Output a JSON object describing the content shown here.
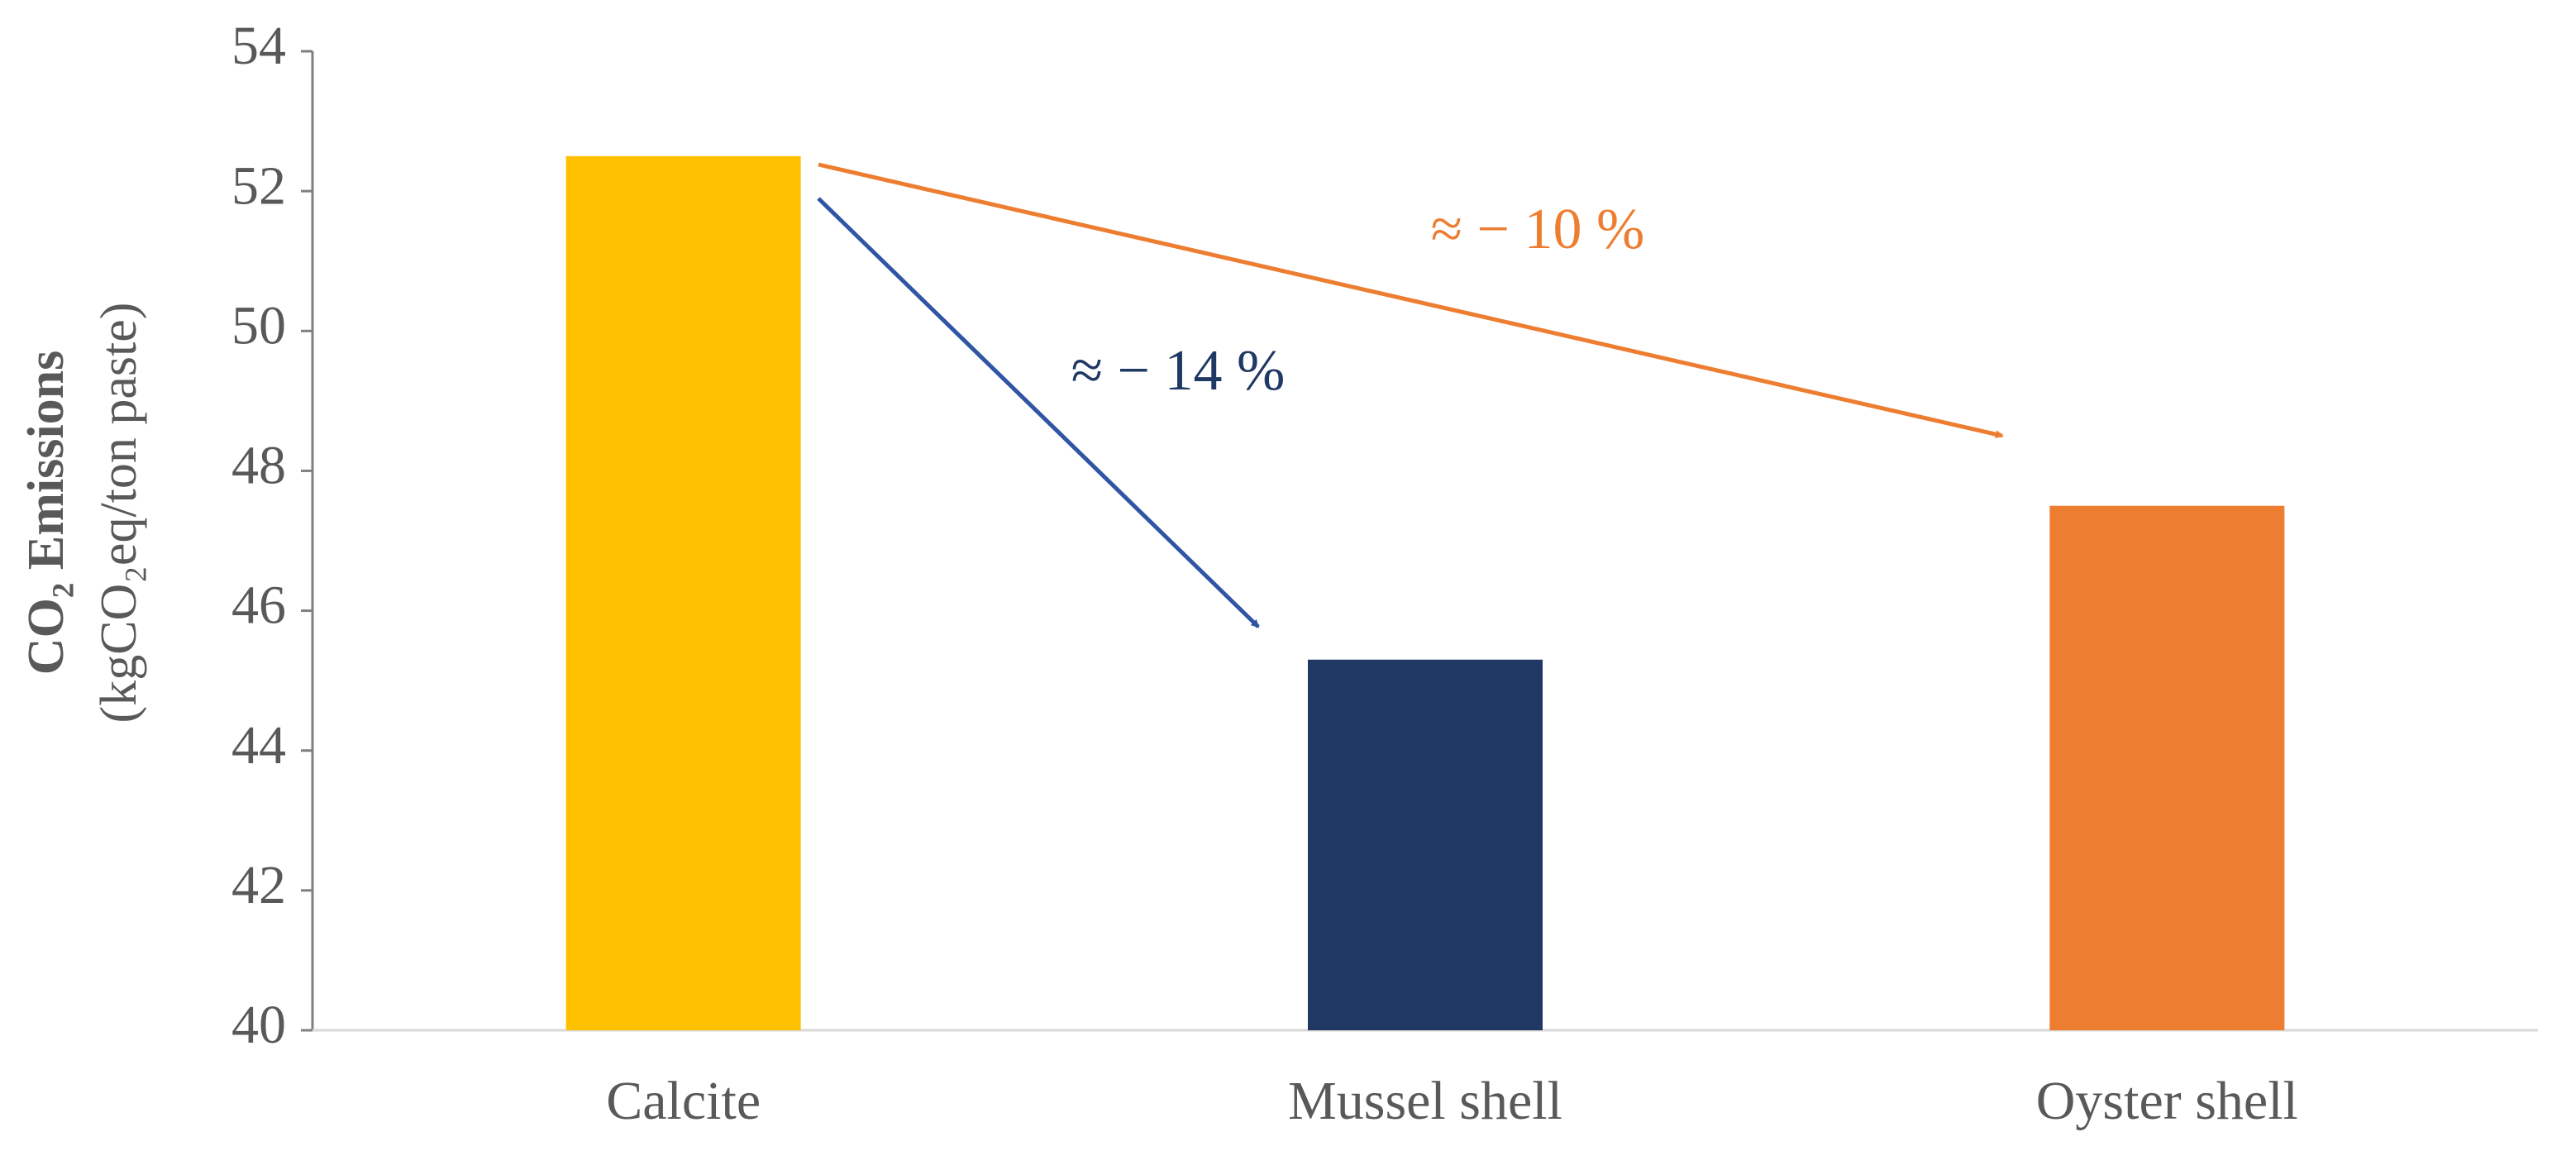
{
  "chart_data": {
    "type": "bar",
    "y_label": "CO₂ Emissions",
    "y_label_unit": "(kgCO₂eq/ton paste)",
    "categories": [
      "Calcite",
      "Mussel shell",
      "Oyster shell"
    ],
    "values": [
      52.5,
      45.3,
      47.5
    ],
    "colors": [
      "#ffc000",
      "#203864",
      "#ed7d31"
    ],
    "ylim": [
      40,
      54
    ],
    "yticks": [
      40,
      42,
      44,
      46,
      48,
      50,
      52,
      54
    ],
    "annotations": [
      "≈ − 14 %",
      "≈ − 10 %"
    ]
  }
}
